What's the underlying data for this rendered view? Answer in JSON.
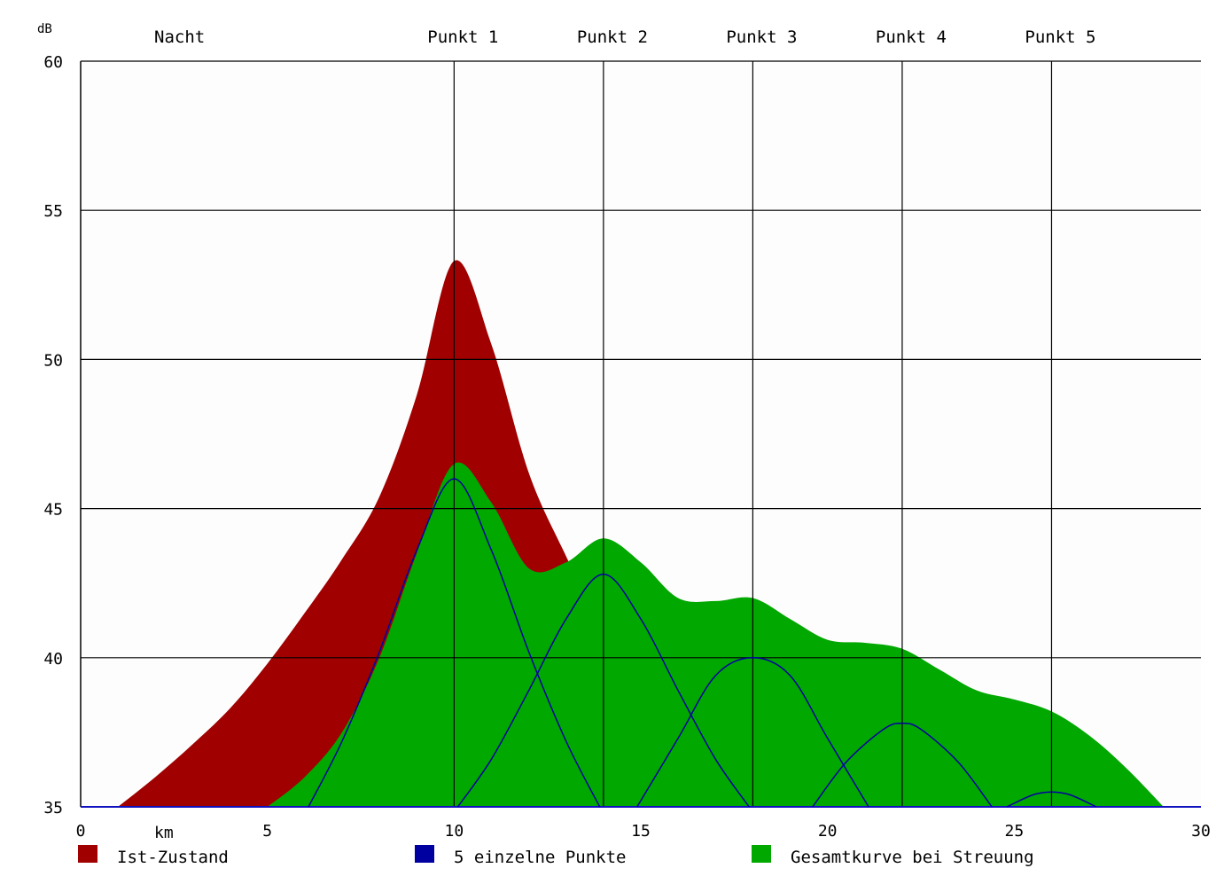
{
  "chart_data": {
    "type": "area",
    "unit_y": "dB",
    "unit_x": "km",
    "title_left": "Nacht",
    "ylim": [
      35,
      60
    ],
    "xlim": [
      0,
      30
    ],
    "y_ticks": [
      35,
      40,
      45,
      50,
      55,
      60
    ],
    "x_ticks": [
      0,
      5,
      10,
      15,
      20,
      25,
      30
    ],
    "grid": true,
    "point_labels": [
      {
        "label": "Punkt 1",
        "x": 10
      },
      {
        "label": "Punkt 2",
        "x": 14
      },
      {
        "label": "Punkt 3",
        "x": 18
      },
      {
        "label": "Punkt 4",
        "x": 22
      },
      {
        "label": "Punkt 5",
        "x": 26
      }
    ],
    "series": [
      {
        "name": "Ist-Zustand",
        "kind": "area",
        "color": "#a00000",
        "points": [
          [
            1,
            35
          ],
          [
            2,
            36
          ],
          [
            3,
            37.1
          ],
          [
            4,
            38.3
          ],
          [
            5,
            39.8
          ],
          [
            6,
            41.5
          ],
          [
            7,
            43.3
          ],
          [
            8,
            45.4
          ],
          [
            9,
            48.8
          ],
          [
            10,
            53.3
          ],
          [
            11,
            50.5
          ],
          [
            12,
            46.2
          ],
          [
            13,
            43.4
          ],
          [
            14,
            40.8
          ],
          [
            15,
            38.5
          ],
          [
            16,
            36.2
          ],
          [
            17,
            35
          ]
        ]
      },
      {
        "name": "Gesamtkurve bei Streuung",
        "kind": "area",
        "color": "#00a800",
        "points": [
          [
            5,
            35
          ],
          [
            6,
            36
          ],
          [
            7,
            37.5
          ],
          [
            8,
            40
          ],
          [
            9,
            43.5
          ],
          [
            10,
            46.5
          ],
          [
            11,
            45.2
          ],
          [
            12,
            43
          ],
          [
            13,
            43.2
          ],
          [
            14,
            44
          ],
          [
            15,
            43.2
          ],
          [
            16,
            42
          ],
          [
            17,
            41.9
          ],
          [
            18,
            42
          ],
          [
            19,
            41.3
          ],
          [
            20,
            40.6
          ],
          [
            21,
            40.5
          ],
          [
            22,
            40.3
          ],
          [
            23,
            39.6
          ],
          [
            24,
            38.9
          ],
          [
            25,
            38.6
          ],
          [
            26,
            38.2
          ],
          [
            27,
            37.4
          ],
          [
            28,
            36.3
          ],
          [
            29,
            35
          ]
        ]
      },
      {
        "name": "5 einzelne Punkte",
        "kind": "line",
        "color": "#0000a0",
        "curves": [
          {
            "x": [
              6.1,
              7,
              8,
              9,
              10,
              11,
              12,
              13,
              13.9
            ],
            "y": [
              35,
              37.2,
              40.2,
              43.6,
              46,
              43.6,
              40.2,
              37.2,
              35
            ]
          },
          {
            "x": [
              10.1,
              11,
              12,
              13,
              14,
              15,
              16,
              17,
              17.9
            ],
            "y": [
              35,
              36.6,
              38.9,
              41.3,
              42.8,
              41.3,
              38.9,
              36.6,
              35
            ]
          },
          {
            "x": [
              14.9,
              16,
              17,
              18,
              19,
              20,
              21.1
            ],
            "y": [
              35,
              37.3,
              39.4,
              40,
              39.4,
              37.3,
              35
            ]
          },
          {
            "x": [
              19.6,
              20.5,
              21.5,
              22,
              22.5,
              23.5,
              24.4
            ],
            "y": [
              35,
              36.5,
              37.6,
              37.8,
              37.6,
              36.5,
              35
            ]
          },
          {
            "x": [
              24.8,
              25.5,
              26,
              26.5,
              27.2
            ],
            "y": [
              35,
              35.4,
              35.5,
              35.4,
              35
            ]
          }
        ]
      }
    ],
    "legend": {
      "placement": "bottom",
      "items": [
        {
          "label": "Ist-Zustand",
          "color": "#a00000"
        },
        {
          "label": "5 einzelne Punkte",
          "color": "#0000a0"
        },
        {
          "label": "Gesamtkurve bei Streuung",
          "color": "#00a800"
        }
      ]
    }
  }
}
